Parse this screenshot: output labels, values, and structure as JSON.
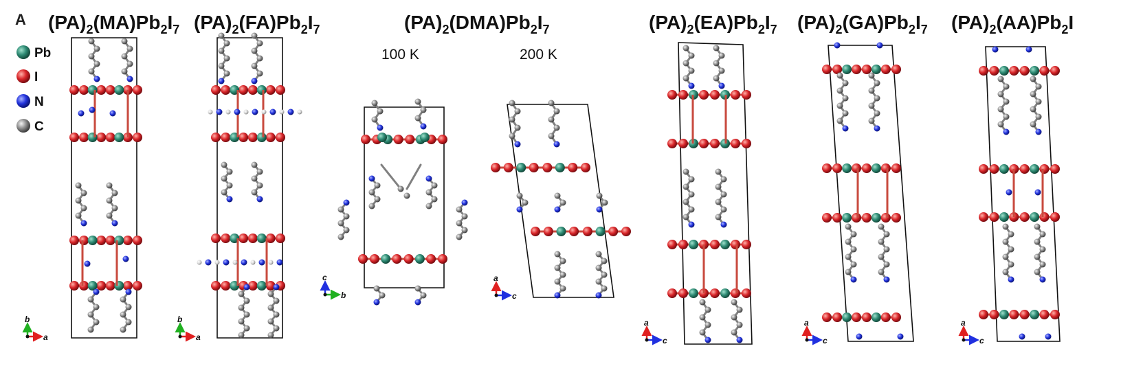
{
  "panel_letter": "A",
  "legend": [
    {
      "label": "Pb",
      "color": "#2e8b74"
    },
    {
      "label": "I",
      "color": "#d9262a"
    },
    {
      "label": "N",
      "color": "#2233dd"
    },
    {
      "label": "C",
      "color": "#8c8c8c"
    }
  ],
  "titles": [
    {
      "main": "(PA)",
      "s1": "2",
      "mid": "(MA)Pb",
      "s2": "2",
      "end": "I",
      "s3": "7"
    },
    {
      "main": "(PA)",
      "s1": "2",
      "mid": "(FA)Pb",
      "s2": "2",
      "end": "I",
      "s3": "7"
    },
    {
      "main": "(PA)",
      "s1": "2",
      "mid": "(DMA)Pb",
      "s2": "2",
      "end": "I",
      "s3": "7"
    },
    {
      "main": "(PA)",
      "s1": "2",
      "mid": "(EA)Pb",
      "s2": "2",
      "end": "I",
      "s3": "7"
    },
    {
      "main": "(PA)",
      "s1": "2",
      "mid": "(GA)Pb",
      "s2": "2",
      "end": "I",
      "s3": "7"
    },
    {
      "main": "(PA)",
      "s1": "2",
      "mid": "(AA)Pb",
      "s2": "2",
      "end": "I",
      "s3": ""
    }
  ],
  "temperatures": [
    "100 K",
    "200 K"
  ],
  "axes": [
    {
      "up": "b",
      "right": "a"
    },
    {
      "up": "b",
      "right": "a"
    },
    {
      "up": "c",
      "right": "b"
    },
    {
      "up": "a",
      "right": "c"
    },
    {
      "up": "a",
      "right": "c"
    },
    {
      "up": "a",
      "right": "c"
    },
    {
      "up": "a",
      "right": "c"
    }
  ]
}
